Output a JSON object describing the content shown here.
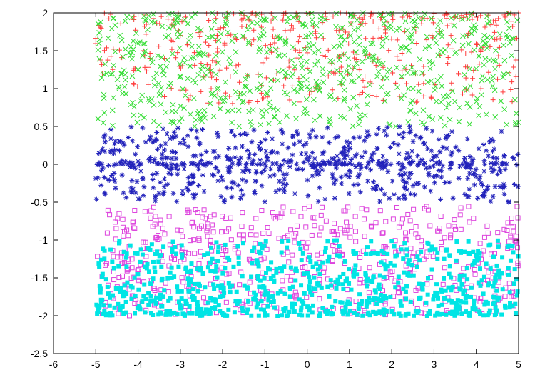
{
  "chart_data": {
    "type": "scatter",
    "title": "",
    "xlabel": "",
    "ylabel": "",
    "xlim": [
      -6,
      5
    ],
    "ylim": [
      -2.5,
      2
    ],
    "grid": false,
    "legend": "none",
    "x_ticks": [
      "-6",
      "-5",
      "-4",
      "-3",
      "-2",
      "-1",
      "0",
      "1",
      "2",
      "3",
      "4",
      "5"
    ],
    "y_ticks": [
      "2",
      "1.5",
      "1",
      "0.5",
      "0",
      "-0.5",
      "-1",
      "-1.5",
      "-2",
      "-2.5"
    ],
    "series": [
      {
        "marker": "plus",
        "color": "#ff3b3b",
        "count": 450,
        "x_range": [
          -5,
          5
        ],
        "y_range": [
          0.8,
          2
        ],
        "bias_toward": 2,
        "bias_power": 1.6
      },
      {
        "marker": "cross",
        "color": "#33dd33",
        "count": 650,
        "x_range": [
          -5,
          5
        ],
        "y_range": [
          0.5,
          2
        ],
        "bias_toward": 2,
        "bias_power": 1.1
      },
      {
        "marker": "star",
        "color": "#2222bb",
        "count": 700,
        "x_range": [
          -5,
          5
        ],
        "y_range": [
          -0.5,
          0.5
        ],
        "bias_toward": 0,
        "bias_power": 1.8
      },
      {
        "marker": "open-square",
        "color": "#dd44dd",
        "count": 600,
        "x_range": [
          -5,
          5
        ],
        "y_range": [
          -2,
          -0.55
        ],
        "bias_toward": -2,
        "bias_power": 1.0
      },
      {
        "marker": "filled-square",
        "color": "#00e5e5",
        "count": 800,
        "x_range": [
          -5,
          5
        ],
        "y_range": [
          -2,
          -1
        ],
        "bias_toward": -2,
        "bias_power": 1.5
      }
    ]
  }
}
